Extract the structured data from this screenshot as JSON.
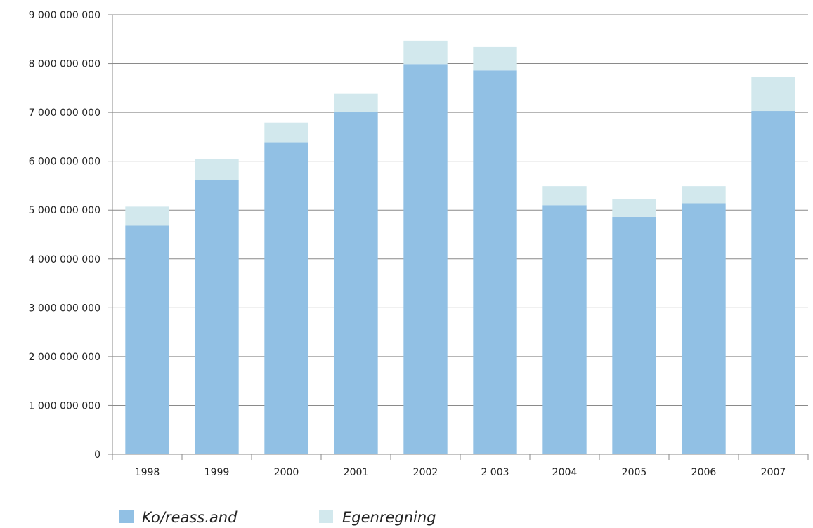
{
  "chart_data": {
    "type": "bar",
    "stacked": true,
    "categories": [
      "1998",
      "1999",
      "2000",
      "2001",
      "2002",
      "2 003",
      "2004",
      "2005",
      "2006",
      "2007"
    ],
    "series": [
      {
        "name": "Ko/reass.and",
        "color": "#91c0e4",
        "values": [
          4680000000,
          5620000000,
          6390000000,
          7010000000,
          7990000000,
          7860000000,
          5100000000,
          4860000000,
          5140000000,
          7030000000
        ]
      },
      {
        "name": "Egenregning",
        "color": "#d2e8ed",
        "values": [
          390000000,
          420000000,
          400000000,
          370000000,
          480000000,
          480000000,
          390000000,
          370000000,
          350000000,
          700000000
        ]
      }
    ],
    "yticks": [
      "0",
      "1 000 000 000",
      "2 000 000 000",
      "3 000 000 000",
      "4 000 000 000",
      "5 000 000 000",
      "6 000 000 000",
      "7 000 000 000",
      "8 000 000 000",
      "9 000 000 000"
    ],
    "ylim": [
      0,
      9000000000
    ],
    "grid": true,
    "legend_position": "bottom-left",
    "title": "",
    "xlabel": "",
    "ylabel": ""
  }
}
